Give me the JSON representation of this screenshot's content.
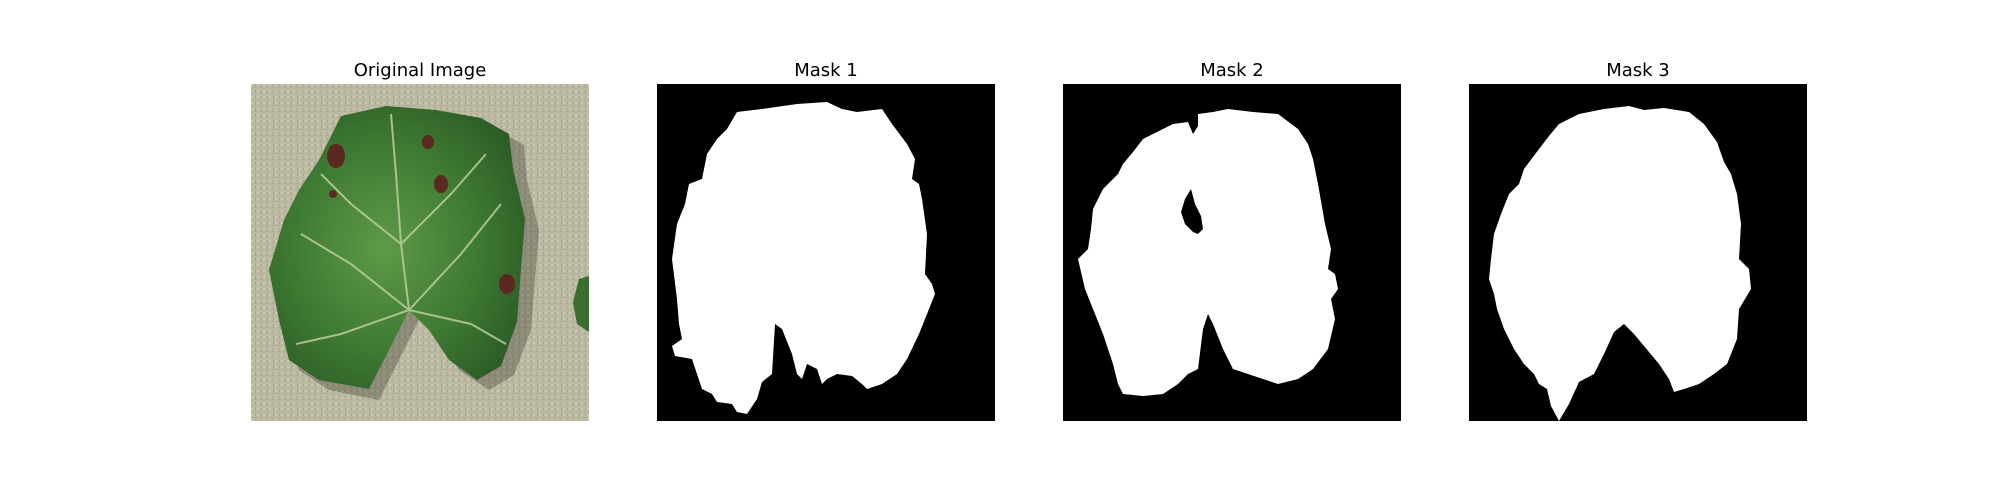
{
  "figure": {
    "panels": [
      {
        "title": "Original Image"
      },
      {
        "title": "Mask 1"
      },
      {
        "title": "Mask 2"
      },
      {
        "title": "Mask 3"
      }
    ]
  },
  "colors": {
    "mask_background": "#000000",
    "mask_foreground": "#ffffff",
    "ground": "#b8b49c",
    "leaf": "#3f7a33",
    "leaf_vein": "#b9cf9e",
    "lesion": "#5a2a22"
  }
}
